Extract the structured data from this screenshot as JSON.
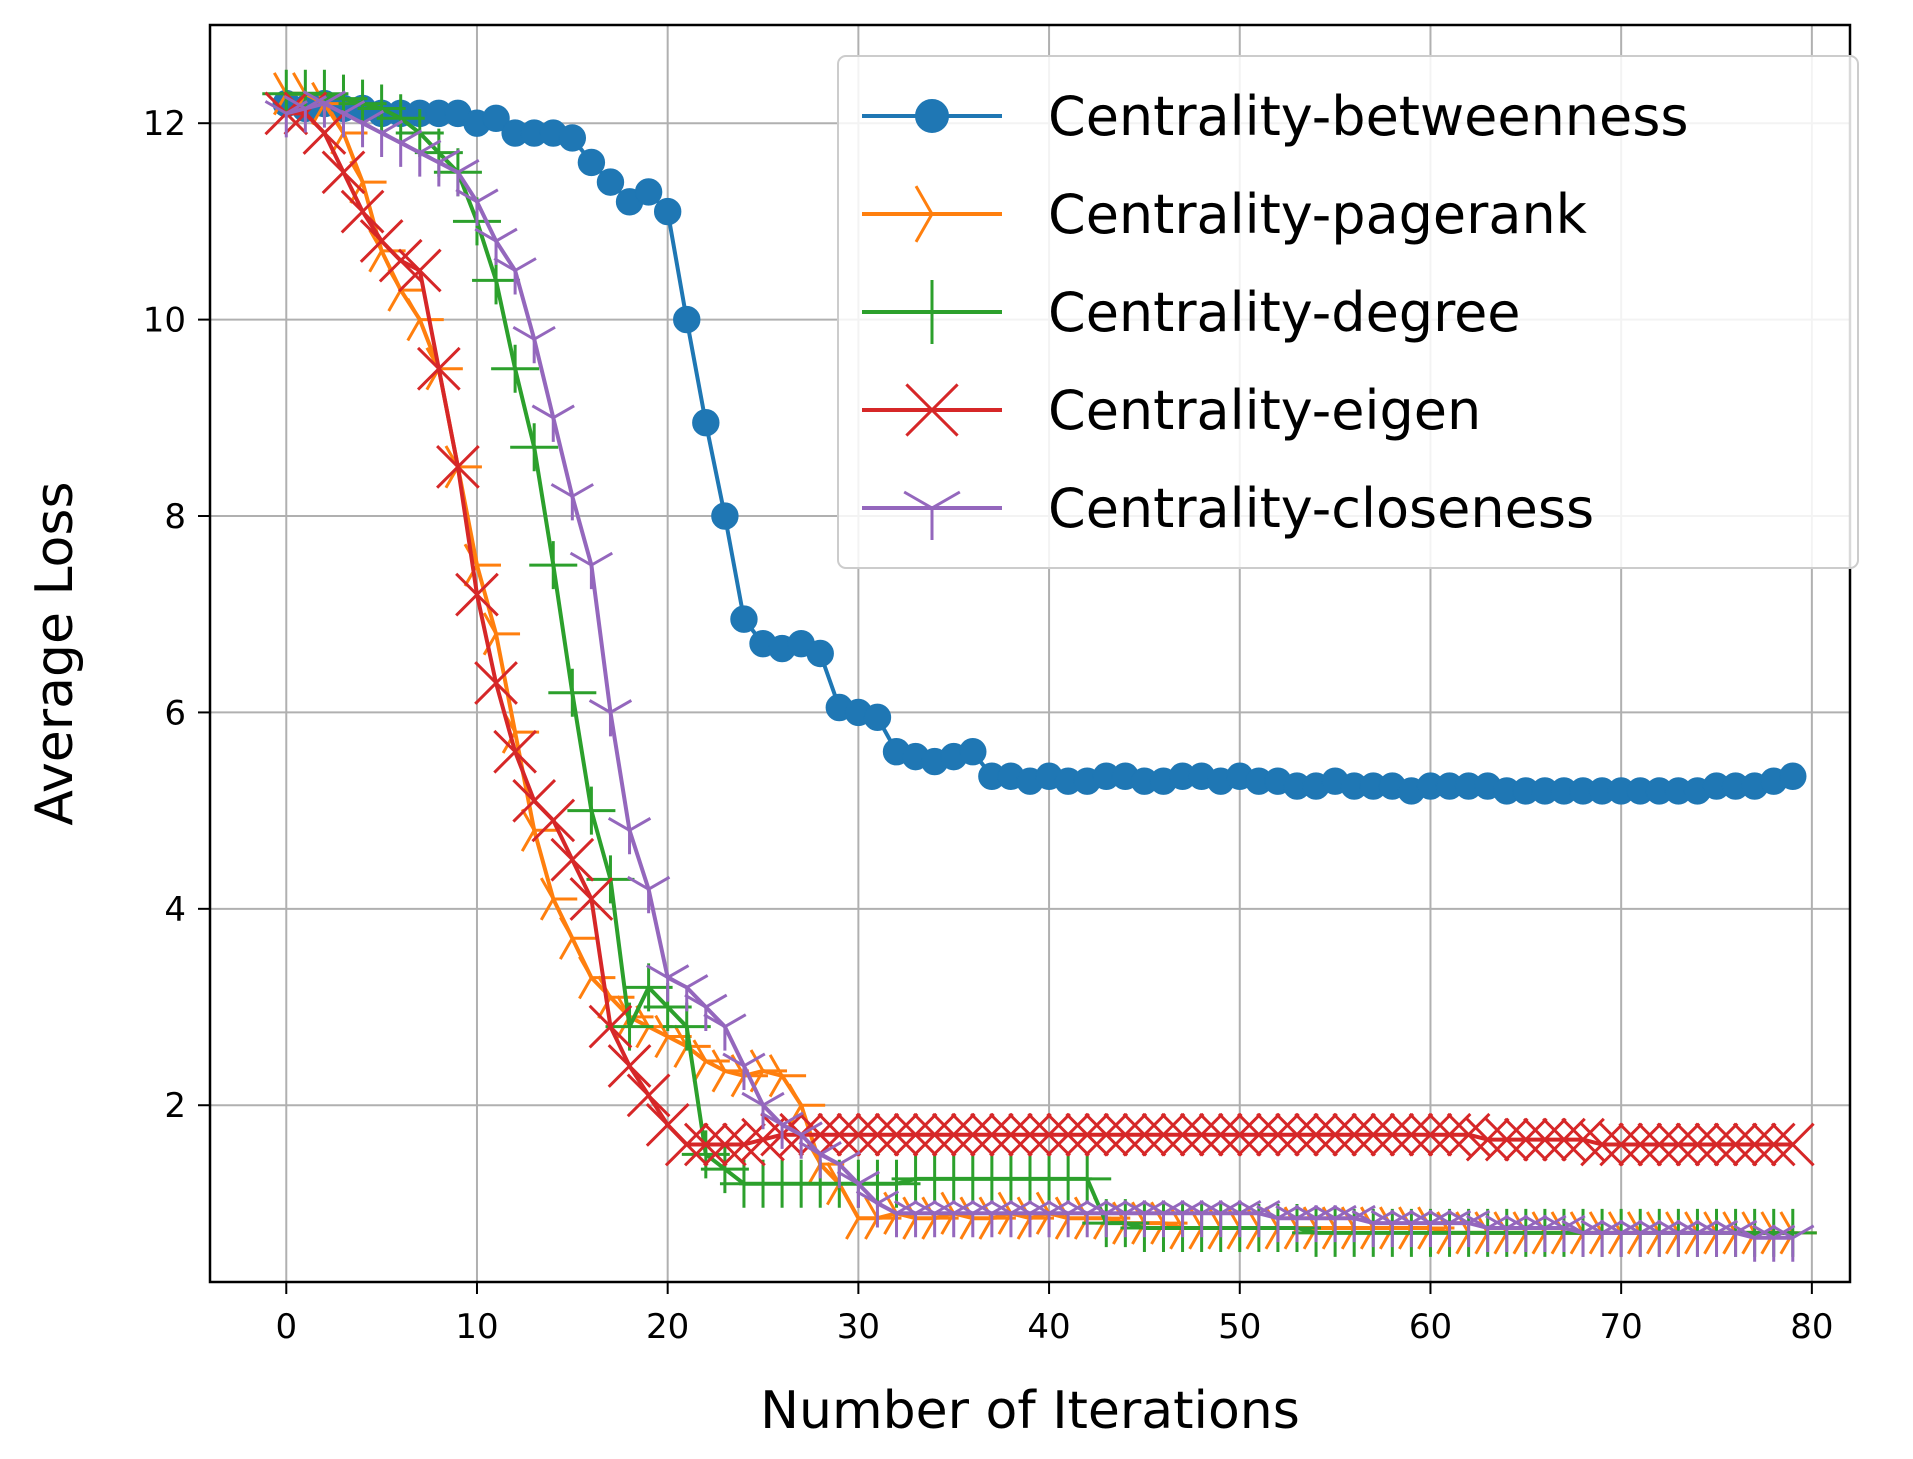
{
  "chart_data": {
    "type": "line",
    "title": "",
    "xlabel": "Number of Iterations",
    "ylabel": "Average Loss",
    "xlim": [
      -4,
      82
    ],
    "ylim": [
      0.2,
      13.0
    ],
    "xticks": [
      0,
      10,
      20,
      30,
      40,
      50,
      60,
      70,
      80
    ],
    "yticks": [
      2,
      4,
      6,
      8,
      10,
      12
    ],
    "grid": true,
    "legend_position": "top-right",
    "series": [
      {
        "name": "Centrality-betweenness",
        "color": "#1f77b4",
        "marker": "circle",
        "x": [
          0,
          1,
          2,
          3,
          4,
          5,
          6,
          7,
          8,
          9,
          10,
          11,
          12,
          13,
          14,
          15,
          16,
          17,
          18,
          19,
          20,
          21,
          22,
          23,
          24,
          25,
          26,
          27,
          28,
          29,
          30,
          31,
          32,
          33,
          34,
          35,
          36,
          37,
          38,
          39,
          40,
          41,
          42,
          43,
          44,
          45,
          46,
          47,
          48,
          49,
          50,
          51,
          52,
          53,
          54,
          55,
          56,
          57,
          58,
          59,
          60,
          61,
          62,
          63,
          64,
          65,
          66,
          67,
          68,
          69,
          70,
          71,
          72,
          73,
          74,
          75,
          76,
          77,
          78,
          79
        ],
        "values": [
          12.2,
          12.15,
          12.2,
          12.15,
          12.15,
          12.1,
          12.1,
          12.1,
          12.1,
          12.1,
          12.0,
          12.05,
          11.9,
          11.9,
          11.9,
          11.85,
          11.6,
          11.4,
          11.2,
          11.3,
          11.1,
          10.0,
          8.95,
          8.0,
          6.95,
          6.7,
          6.65,
          6.7,
          6.6,
          6.05,
          6.0,
          5.95,
          5.6,
          5.55,
          5.5,
          5.55,
          5.6,
          5.35,
          5.35,
          5.3,
          5.35,
          5.3,
          5.3,
          5.35,
          5.35,
          5.3,
          5.3,
          5.35,
          5.35,
          5.3,
          5.35,
          5.3,
          5.3,
          5.25,
          5.25,
          5.3,
          5.25,
          5.25,
          5.25,
          5.2,
          5.25,
          5.25,
          5.25,
          5.25,
          5.2,
          5.2,
          5.2,
          5.2,
          5.2,
          5.2,
          5.2,
          5.2,
          5.2,
          5.2,
          5.2,
          5.25,
          5.25,
          5.25,
          5.3,
          5.35
        ]
      },
      {
        "name": "Centrality-pagerank",
        "color": "#ff7f0e",
        "marker": "tri-right",
        "x": [
          0,
          1,
          2,
          3,
          4,
          5,
          6,
          7,
          8,
          9,
          10,
          11,
          12,
          13,
          14,
          15,
          16,
          17,
          18,
          19,
          20,
          21,
          22,
          23,
          24,
          25,
          26,
          27,
          28,
          29,
          30,
          31,
          32,
          33,
          34,
          35,
          36,
          37,
          38,
          39,
          40,
          41,
          42,
          43,
          44,
          45,
          46,
          47,
          48,
          49,
          50,
          51,
          52,
          53,
          54,
          55,
          56,
          57,
          58,
          59,
          60,
          61,
          62,
          63,
          64,
          65,
          66,
          67,
          68,
          69,
          70,
          71,
          72,
          73,
          74,
          75,
          76,
          77,
          78,
          79
        ],
        "values": [
          12.3,
          12.3,
          12.2,
          11.9,
          11.4,
          10.7,
          10.3,
          10.0,
          9.5,
          8.5,
          7.5,
          6.8,
          5.8,
          4.8,
          4.1,
          3.7,
          3.3,
          3.1,
          2.9,
          2.8,
          2.7,
          2.6,
          2.45,
          2.35,
          2.3,
          2.35,
          2.3,
          2.0,
          1.4,
          1.2,
          0.85,
          0.85,
          0.9,
          0.85,
          0.85,
          0.9,
          0.85,
          0.85,
          0.9,
          0.85,
          0.9,
          0.85,
          0.85,
          0.85,
          0.8,
          0.8,
          0.8,
          0.75,
          0.75,
          0.75,
          0.75,
          0.75,
          0.75,
          0.75,
          0.75,
          0.75,
          0.75,
          0.75,
          0.75,
          0.75,
          0.75,
          0.7,
          0.7,
          0.7,
          0.7,
          0.7,
          0.7,
          0.7,
          0.7,
          0.7,
          0.7,
          0.7,
          0.7,
          0.7,
          0.7,
          0.7,
          0.7,
          0.7,
          0.7,
          0.7
        ]
      },
      {
        "name": "Centrality-degree",
        "color": "#2ca02c",
        "marker": "plus",
        "x": [
          0,
          1,
          2,
          3,
          4,
          5,
          6,
          7,
          8,
          9,
          10,
          11,
          12,
          13,
          14,
          15,
          16,
          17,
          18,
          19,
          20,
          21,
          22,
          23,
          24,
          25,
          26,
          27,
          28,
          29,
          30,
          31,
          32,
          33,
          34,
          35,
          36,
          37,
          38,
          39,
          40,
          41,
          42,
          43,
          44,
          45,
          46,
          47,
          48,
          49,
          50,
          51,
          52,
          53,
          54,
          55,
          56,
          57,
          58,
          59,
          60,
          61,
          62,
          63,
          64,
          65,
          66,
          67,
          68,
          69,
          70,
          71,
          72,
          73,
          74,
          75,
          76,
          77,
          78,
          79
        ],
        "values": [
          12.3,
          12.3,
          12.3,
          12.25,
          12.2,
          12.15,
          12.05,
          11.9,
          11.7,
          11.5,
          11.0,
          10.4,
          9.5,
          8.7,
          7.5,
          6.2,
          5.0,
          4.3,
          2.8,
          3.2,
          3.0,
          2.8,
          1.5,
          1.35,
          1.2,
          1.2,
          1.2,
          1.2,
          1.2,
          1.2,
          1.2,
          1.2,
          1.2,
          1.25,
          1.25,
          1.25,
          1.25,
          1.25,
          1.25,
          1.25,
          1.25,
          1.25,
          1.25,
          0.8,
          0.8,
          0.75,
          0.75,
          0.75,
          0.75,
          0.75,
          0.75,
          0.75,
          0.75,
          0.75,
          0.7,
          0.7,
          0.7,
          0.7,
          0.7,
          0.7,
          0.7,
          0.7,
          0.7,
          0.7,
          0.7,
          0.7,
          0.7,
          0.7,
          0.7,
          0.7,
          0.7,
          0.7,
          0.7,
          0.7,
          0.7,
          0.7,
          0.7,
          0.7,
          0.7,
          0.7
        ]
      },
      {
        "name": "Centrality-eigen",
        "color": "#d62728",
        "marker": "x",
        "x": [
          0,
          1,
          2,
          3,
          4,
          5,
          6,
          7,
          8,
          9,
          10,
          11,
          12,
          13,
          14,
          15,
          16,
          17,
          18,
          19,
          20,
          21,
          22,
          23,
          24,
          25,
          26,
          27,
          28,
          29,
          30,
          31,
          32,
          33,
          34,
          35,
          36,
          37,
          38,
          39,
          40,
          41,
          42,
          43,
          44,
          45,
          46,
          47,
          48,
          49,
          50,
          51,
          52,
          53,
          54,
          55,
          56,
          57,
          58,
          59,
          60,
          61,
          62,
          63,
          64,
          65,
          66,
          67,
          68,
          69,
          70,
          71,
          72,
          73,
          74,
          75,
          76,
          77,
          78,
          79
        ],
        "values": [
          12.1,
          12.1,
          11.9,
          11.5,
          11.1,
          10.8,
          10.6,
          10.5,
          9.5,
          8.5,
          7.2,
          6.3,
          5.6,
          5.1,
          4.9,
          4.5,
          4.1,
          2.8,
          2.4,
          2.1,
          1.8,
          1.6,
          1.6,
          1.6,
          1.6,
          1.65,
          1.7,
          1.7,
          1.7,
          1.7,
          1.7,
          1.7,
          1.7,
          1.7,
          1.7,
          1.7,
          1.7,
          1.7,
          1.7,
          1.7,
          1.7,
          1.7,
          1.7,
          1.7,
          1.7,
          1.7,
          1.7,
          1.7,
          1.7,
          1.7,
          1.7,
          1.7,
          1.7,
          1.7,
          1.7,
          1.7,
          1.7,
          1.7,
          1.7,
          1.7,
          1.7,
          1.7,
          1.7,
          1.65,
          1.65,
          1.65,
          1.65,
          1.65,
          1.65,
          1.6,
          1.6,
          1.6,
          1.6,
          1.6,
          1.6,
          1.6,
          1.6,
          1.6,
          1.6,
          1.6
        ]
      },
      {
        "name": "Centrality-closeness",
        "color": "#9467bd",
        "marker": "tri-down",
        "x": [
          0,
          1,
          2,
          3,
          4,
          5,
          6,
          7,
          8,
          9,
          10,
          11,
          12,
          13,
          14,
          15,
          16,
          17,
          18,
          19,
          20,
          21,
          22,
          23,
          24,
          25,
          26,
          27,
          28,
          29,
          30,
          31,
          32,
          33,
          34,
          35,
          36,
          37,
          38,
          39,
          40,
          41,
          42,
          43,
          44,
          45,
          46,
          47,
          48,
          49,
          50,
          51,
          52,
          53,
          54,
          55,
          56,
          57,
          58,
          59,
          60,
          61,
          62,
          63,
          64,
          65,
          66,
          67,
          68,
          69,
          70,
          71,
          72,
          73,
          74,
          75,
          76,
          77,
          78,
          79
        ],
        "values": [
          12.1,
          12.15,
          12.2,
          12.1,
          12.0,
          11.9,
          11.8,
          11.7,
          11.6,
          11.5,
          11.2,
          10.8,
          10.5,
          9.8,
          9.0,
          8.2,
          7.5,
          6.0,
          4.8,
          4.2,
          3.3,
          3.2,
          3.0,
          2.8,
          2.4,
          2.0,
          1.8,
          1.7,
          1.5,
          1.4,
          1.2,
          1.0,
          0.9,
          0.9,
          0.9,
          0.9,
          0.9,
          0.9,
          0.9,
          0.9,
          0.9,
          0.9,
          0.9,
          0.9,
          0.9,
          0.9,
          0.9,
          0.9,
          0.9,
          0.9,
          0.9,
          0.9,
          0.85,
          0.85,
          0.85,
          0.85,
          0.85,
          0.8,
          0.8,
          0.8,
          0.8,
          0.8,
          0.8,
          0.75,
          0.75,
          0.75,
          0.75,
          0.75,
          0.7,
          0.7,
          0.7,
          0.7,
          0.7,
          0.7,
          0.7,
          0.7,
          0.7,
          0.65,
          0.65,
          0.65
        ]
      }
    ]
  }
}
